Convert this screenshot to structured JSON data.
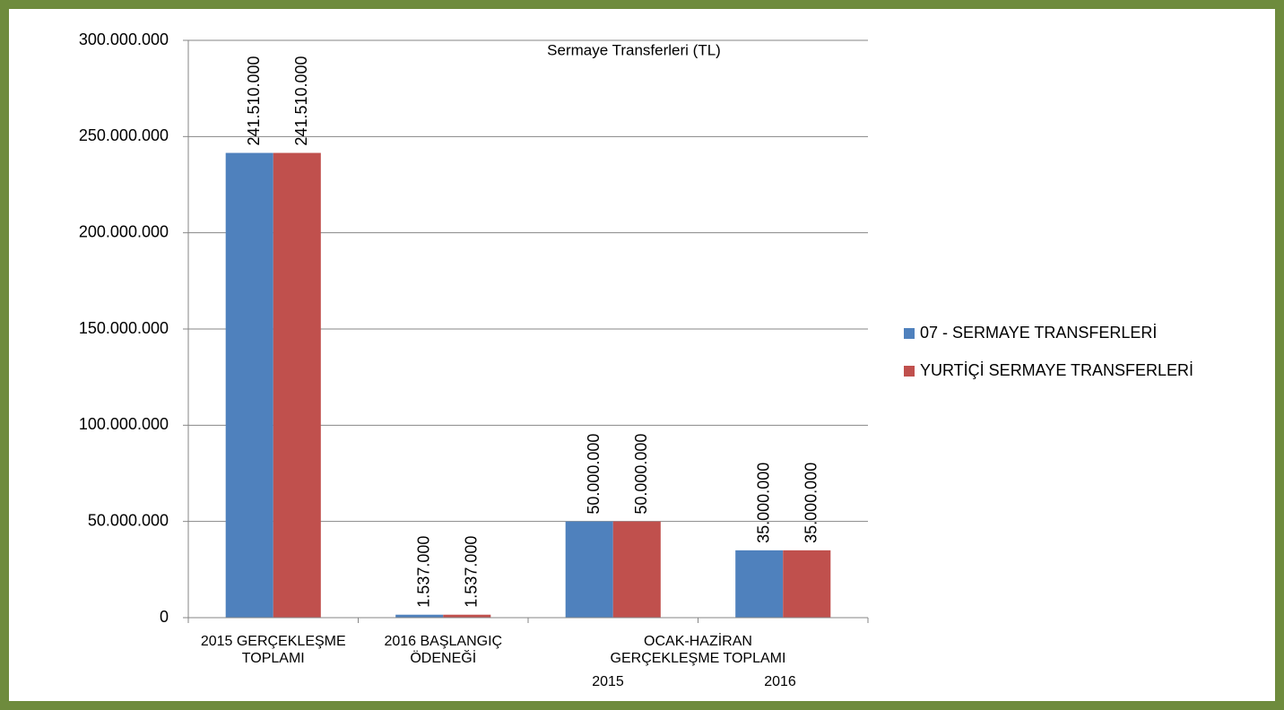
{
  "chart_data": {
    "type": "bar",
    "title": "Sermaye Transferleri (TL)",
    "categories": [
      "2015 GERÇEKLEŞME TOPLAMI",
      "2016 BAŞLANGIÇ ÖDENEĞİ",
      "2015",
      "2016"
    ],
    "category_group": "OCAK-HAZİRAN GERÇEKLEŞME TOPLAMI",
    "series": [
      {
        "name": "07 - SERMAYE TRANSFERLERİ",
        "color": "#4f81bd",
        "values": [
          241510000,
          1537000,
          50000000,
          35000000
        ],
        "value_labels": [
          "241.510.000",
          "1.537.000",
          "50.000.000",
          "35.000.000"
        ]
      },
      {
        "name": "YURTİÇİ SERMAYE TRANSFERLERİ",
        "color": "#c0504d",
        "values": [
          241510000,
          1537000,
          50000000,
          35000000
        ],
        "value_labels": [
          "241.510.000",
          "1.537.000",
          "50.000.000",
          "35.000.000"
        ]
      }
    ],
    "ylim": [
      0,
      300000000
    ],
    "yticks": [
      0,
      {
        "value": 50000000,
        "label": "50.000.000"
      },
      {
        "value": 100000000,
        "label": "100.000.000"
      },
      {
        "value": 150000000,
        "label": "150.000.000"
      },
      {
        "value": 200000000,
        "label": "200.000.000"
      },
      {
        "value": 250000000,
        "label": "250.000.000"
      },
      {
        "value": 300000000,
        "label": "300.000.000"
      }
    ],
    "grid": true,
    "legend": "right"
  }
}
